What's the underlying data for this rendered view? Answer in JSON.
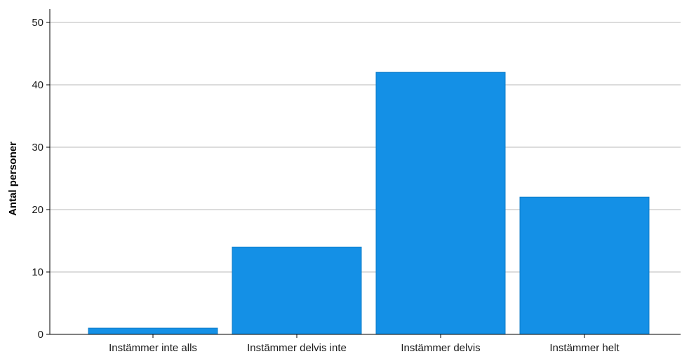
{
  "chart_data": {
    "type": "bar",
    "title": "",
    "xlabel": "",
    "ylabel": "Antal personer",
    "categories": [
      "Instämmer inte alls",
      "Instämmer delvis inte",
      "Instämmer delvis",
      "Instämmer helt"
    ],
    "values": [
      1,
      14,
      42,
      22
    ],
    "ylim": [
      0,
      50
    ],
    "yticks": [
      0,
      10,
      20,
      30,
      40,
      50
    ],
    "grid": true,
    "legend": "none",
    "colors": {
      "bar": "#1490E6",
      "bar_stroke": "#0F7DC8",
      "grid": "#C8C8C8",
      "axis": "#000000"
    }
  }
}
